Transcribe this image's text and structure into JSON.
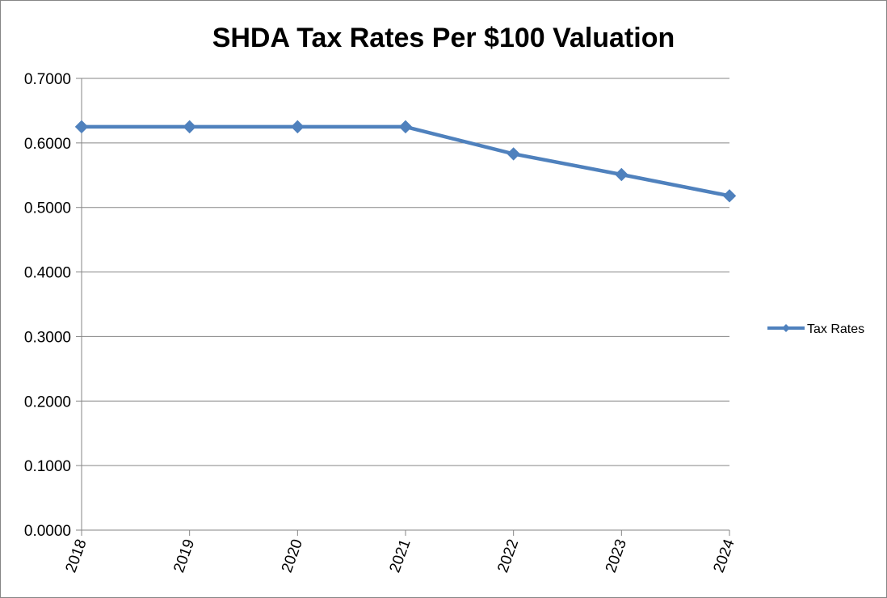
{
  "chart_data": {
    "type": "line",
    "title": "SHDA Tax Rates Per $100 Valuation",
    "categories": [
      "2018",
      "2019",
      "2020",
      "2021",
      "2022",
      "2023",
      "2024"
    ],
    "series": [
      {
        "name": "Tax Rates",
        "values": [
          0.625,
          0.625,
          0.625,
          0.625,
          0.583,
          0.551,
          0.518
        ],
        "color": "#4F81BD",
        "marker": "diamond"
      }
    ],
    "ylim": [
      0,
      0.7
    ],
    "yticks": [
      "0.0000",
      "0.1000",
      "0.2000",
      "0.3000",
      "0.4000",
      "0.5000",
      "0.6000",
      "0.7000"
    ],
    "xlabel": "",
    "ylabel": "",
    "grid": true,
    "legend_position": "right",
    "gridline_color": "#868686",
    "axis_color": "#868686"
  }
}
